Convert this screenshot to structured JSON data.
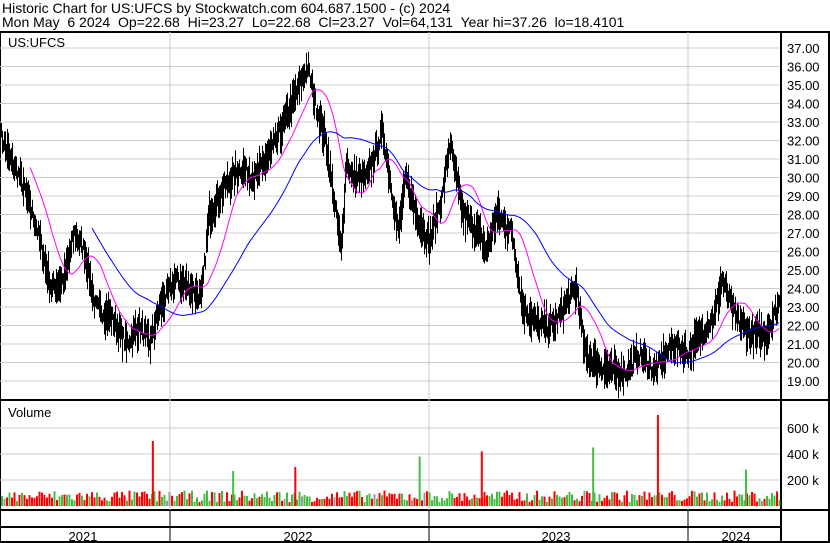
{
  "header": {
    "line1": "Historic Chart for US:UFCS by Stockwatch.com 604.687.1500 - (c) 2024",
    "line2": "Mon May  6 2024  Op=22.68  Hi=23.27  Lo=22.68  Cl=23.27  Vol=64,131  Year hi=37.26  lo=18.4101"
  },
  "chart_data": [
    {
      "type": "line",
      "title": "US:UFCS",
      "ylim": [
        18.5,
        37.5
      ],
      "grid": true,
      "yticks": [
        "37.00",
        "36.00",
        "35.00",
        "34.00",
        "33.00",
        "32.00",
        "31.00",
        "30.00",
        "29.00",
        "28.00",
        "27.00",
        "26.00",
        "25.00",
        "24.00",
        "23.00",
        "22.00",
        "21.00",
        "20.00",
        "19.00"
      ],
      "xticks": [
        "2021",
        "2022",
        "2023",
        "2024"
      ],
      "colors": {
        "price": "#000000",
        "ma_short": "#ff00ff",
        "ma_long": "#0000ff"
      },
      "series": [
        {
          "x": [
            2021.34,
            2021.38,
            2021.42,
            2021.48,
            2021.54,
            2021.59,
            2021.63,
            2021.67,
            2021.71,
            2021.77,
            2021.83,
            2021.88,
            2021.92,
            2021.96,
            2022.02,
            2022.08,
            2022.12,
            2022.15,
            2022.21,
            2022.27,
            2022.33,
            2022.41,
            2022.47,
            2022.53,
            2022.56,
            2022.6,
            2022.66,
            2022.68,
            2022.7,
            2022.76,
            2022.82,
            2022.88,
            2022.91,
            2022.95,
            2023.0,
            2023.03,
            2023.05,
            2023.08,
            2023.09,
            2023.13,
            2023.19,
            2023.22,
            2023.26,
            2023.32,
            2023.36,
            2023.42,
            2023.48,
            2023.54,
            2023.57,
            2023.6,
            2023.64,
            2023.7,
            2023.76,
            2023.81,
            2023.87,
            2023.94,
            2024.0,
            2024.07,
            2024.1,
            2024.13,
            2024.18,
            2024.24,
            2024.3,
            2024.35
          ],
          "y": [
            32.5,
            31,
            30,
            27.5,
            24,
            24.5,
            27,
            26,
            23,
            22.5,
            21,
            22,
            21,
            23,
            24.5,
            24,
            23.5,
            28,
            29.5,
            30.5,
            30,
            32,
            34,
            36,
            34,
            32,
            26,
            31,
            30,
            30,
            32.5,
            27,
            30,
            28,
            26.5,
            28,
            29,
            32,
            31,
            28,
            27,
            26,
            28,
            27,
            23,
            22,
            22,
            23.5,
            24,
            20.5,
            20,
            19.5,
            19.5,
            20.5,
            19.5,
            21,
            20.5,
            22,
            22.5,
            24.5,
            22.5,
            21.5,
            21.5,
            23.2
          ]
        }
      ]
    },
    {
      "type": "bar",
      "title": "Volume",
      "yticks": [
        "600 k",
        "400 k",
        "200 k"
      ],
      "ylim": [
        0,
        750000
      ],
      "spikes": [
        {
          "x": 2021.93,
          "v": 500000
        },
        {
          "x": 2022.24,
          "v": 270000
        },
        {
          "x": 2022.48,
          "v": 300000
        },
        {
          "x": 2022.96,
          "v": 380000
        },
        {
          "x": 2023.2,
          "v": 420000
        },
        {
          "x": 2023.63,
          "v": 450000
        },
        {
          "x": 2023.88,
          "v": 700000
        },
        {
          "x": 2024.22,
          "v": 280000
        }
      ],
      "colors": {
        "up": "#44bb44",
        "down": "#ff0000",
        "flat": "#999999"
      }
    }
  ]
}
